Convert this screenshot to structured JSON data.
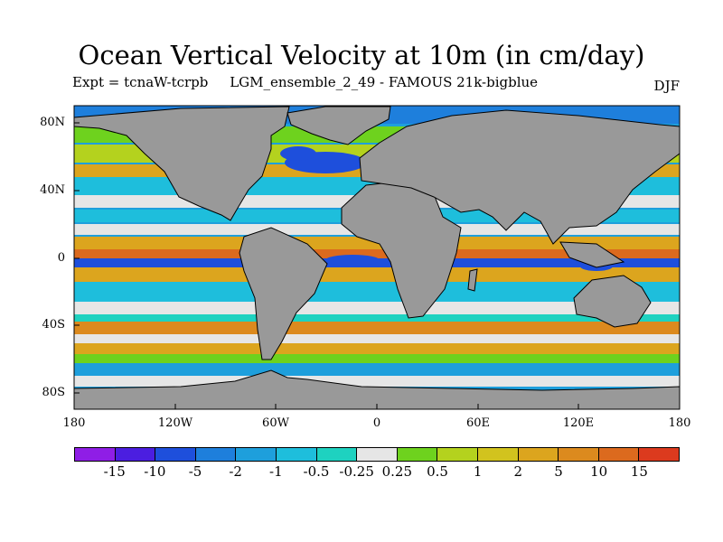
{
  "title": "Ocean Vertical Velocity at 10m (in cm/day)",
  "subtitle_left": "Expt = tcnaW-tcrpb     LGM_ensemble_2_49 - FAMOUS 21k-bigblue",
  "subtitle_right": "DJF",
  "map": {
    "land_color": "#999999",
    "lat_labels": [
      "80N",
      "40N",
      "0",
      "40S",
      "80S"
    ],
    "lon_labels": [
      "180",
      "120W",
      "60W",
      "0",
      "60E",
      "120E",
      "180"
    ]
  },
  "colorbar": {
    "colors": [
      "#8f1ee6",
      "#4b1ee0",
      "#1e4fdc",
      "#1e7fdc",
      "#1e9fdc",
      "#1ebedc",
      "#1ed2c0",
      "#e6e6e6",
      "#6ed21e",
      "#b4d21e",
      "#d2c31e",
      "#dca51e",
      "#dc8a1e",
      "#dc6a1e",
      "#dc3a1e"
    ],
    "labels": [
      "-15",
      "-10",
      "-5",
      "-2",
      "-1",
      "-0.5",
      "-0.25",
      "0.25",
      "0.5",
      "1",
      "2",
      "5",
      "10",
      "15"
    ]
  }
}
